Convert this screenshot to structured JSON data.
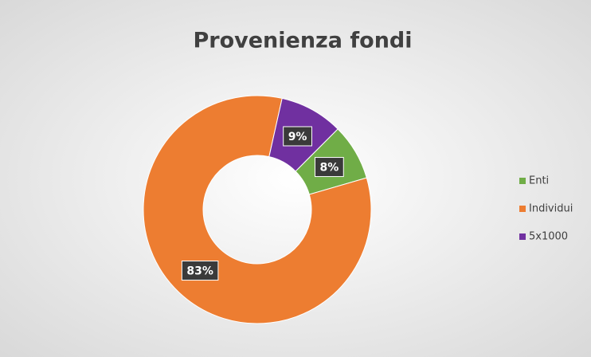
{
  "chart_data": {
    "type": "donut",
    "title": "Provenienza fondi",
    "categories": [
      "Enti",
      "Individui",
      "5x1000"
    ],
    "values": [
      8,
      83,
      9
    ],
    "value_labels": [
      "8%",
      "83%",
      "9%"
    ],
    "colors": [
      "#70ad47",
      "#ed7d31",
      "#7030a0"
    ],
    "legend": "right"
  }
}
